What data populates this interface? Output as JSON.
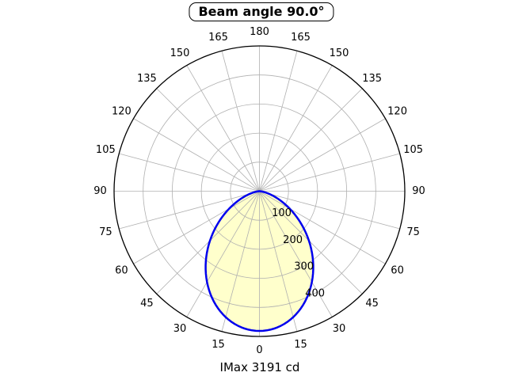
{
  "title": {
    "text": "Beam angle 90.0°"
  },
  "caption": {
    "text": "IMax 3191 cd"
  },
  "chart_data": {
    "type": "polar",
    "title": "Beam angle 90.0°",
    "caption": "IMax 3191 cd",
    "beam_angle_deg": 90.0,
    "imax_cd": 3191,
    "angle_ticks_deg": [
      0,
      15,
      30,
      45,
      60,
      75,
      90,
      105,
      120,
      135,
      150,
      165,
      180
    ],
    "angle_grid_step_deg": 15,
    "radial_ticks": [
      100,
      200,
      300,
      400
    ],
    "radial_max": 500,
    "radial_label_angle_deg": 22.5,
    "grid": true,
    "legend_position": "none",
    "curve": {
      "model": "I(theta) = imax_plot * cos(theta)^2",
      "exponent": 2,
      "imax_plot": 481,
      "samples_deg": [
        0,
        15,
        30,
        45,
        60,
        75,
        90
      ],
      "samples_value": [
        481,
        449,
        361,
        240,
        120,
        32,
        0
      ]
    },
    "colors": {
      "curve": "#0000ee",
      "fill": "#ffffcc",
      "grid": "#b0b0b0",
      "outer_ring": "#000000",
      "text": "#000000",
      "background": "#ffffff"
    }
  }
}
